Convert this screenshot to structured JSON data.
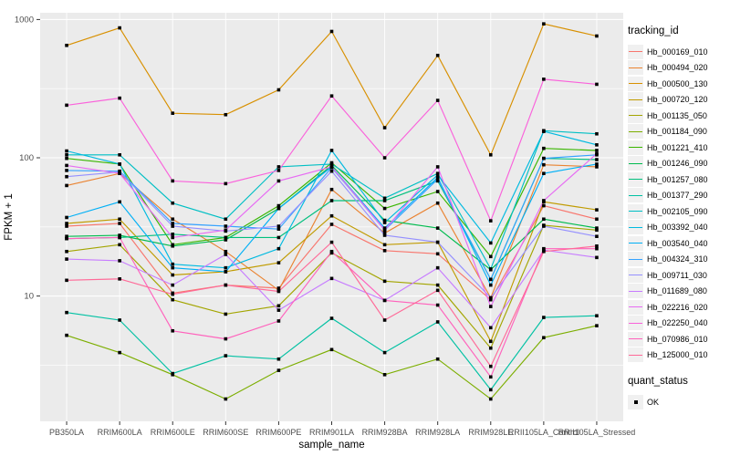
{
  "figure": {
    "kind": "ggplot-line-chart"
  },
  "legend": {
    "tracking_title": "tracking_id",
    "quant_title": "quant_status",
    "quant_value": "OK",
    "key_fill": "#f0f0f0",
    "quant_point_color": "#000000"
  },
  "panel": {
    "background": "#ebebeb",
    "gridline_color": "#ffffff",
    "tick_color": "#333333",
    "tick_label_color": "#4d4d4d"
  },
  "chart_data": {
    "type": "line",
    "title": "",
    "xlabel": "sample_name",
    "ylabel": "FPKM + 1",
    "y_scale": "log10",
    "ylim": [
      1.2,
      1100
    ],
    "y_ticks": [
      {
        "value": 1000,
        "label": "1000"
      },
      {
        "value": 100,
        "label": "100"
      },
      {
        "value": 10,
        "label": "10"
      }
    ],
    "y_minor_gridlines": [
      316.23,
      31.62,
      3.162
    ],
    "grid": true,
    "legend_position": "right",
    "point_shape": "black-square",
    "categories": [
      "PB350LA",
      "RRIM600LA",
      "RRIM600LE",
      "RRIM600SE",
      "RRIM600PE",
      "RRIM901LA",
      "RRIM928BA",
      "RRIM928LA",
      "RRIM928LE",
      "RRII105LA_Control",
      "RRII105LA_Stressed"
    ],
    "series": [
      {
        "name": "Hb_000169_010",
        "color": "#F8766D",
        "values": [
          32,
          33.5,
          10.5,
          12,
          11.4,
          33,
          21.3,
          20.2,
          9.4,
          45,
          36
        ]
      },
      {
        "name": "Hb_000494_020",
        "color": "#EA8331",
        "values": [
          63,
          77,
          36,
          21,
          11,
          59,
          28.5,
          47,
          9.7,
          89,
          86
        ]
      },
      {
        "name": "Hb_000500_130",
        "color": "#D89000",
        "values": [
          650,
          870,
          210,
          205,
          310,
          820,
          165,
          550,
          105,
          930,
          760
        ]
      },
      {
        "name": "Hb_000720_120",
        "color": "#C09B00",
        "values": [
          33.5,
          36,
          14.2,
          15,
          17.4,
          38,
          23.5,
          24.5,
          4.7,
          48,
          42
        ]
      },
      {
        "name": "Hb_001135_050",
        "color": "#A3A500",
        "values": [
          21,
          23.5,
          9.4,
          7.4,
          8.5,
          20.5,
          12.8,
          12,
          4.2,
          32.5,
          30
        ]
      },
      {
        "name": "Hb_001184_090",
        "color": "#7CAE00",
        "values": [
          5.2,
          3.9,
          2.7,
          1.8,
          2.9,
          4.1,
          2.7,
          3.5,
          1.8,
          5,
          6.1
        ]
      },
      {
        "name": "Hb_001221_410",
        "color": "#39B600",
        "values": [
          99,
          90,
          23.5,
          26.5,
          45,
          92,
          43,
          57,
          19.3,
          117,
          113
        ]
      },
      {
        "name": "Hb_001246_090",
        "color": "#00BB4E",
        "values": [
          27,
          27.5,
          23,
          25.5,
          43,
          88,
          35.3,
          31,
          15.5,
          36,
          31
        ]
      },
      {
        "name": "Hb_001257_080",
        "color": "#00BF7D",
        "values": [
          26,
          26.5,
          28,
          26.5,
          26.5,
          49,
          49,
          68,
          13.2,
          99,
          97
        ]
      },
      {
        "name": "Hb_001377_290",
        "color": "#00C1A3",
        "values": [
          7.6,
          6.7,
          2.75,
          3.7,
          3.5,
          6.9,
          3.9,
          6.5,
          2.1,
          7,
          7.2
        ]
      },
      {
        "name": "Hb_002105_090",
        "color": "#00BFC4",
        "values": [
          105,
          105,
          47,
          36,
          86,
          90,
          51,
          77,
          15.7,
          157,
          149
        ]
      },
      {
        "name": "Hb_003392_040",
        "color": "#00BAE0",
        "values": [
          112,
          90,
          17,
          16,
          22,
          113,
          34,
          75,
          24.2,
          155,
          124
        ]
      },
      {
        "name": "Hb_003540_040",
        "color": "#00B0F6",
        "values": [
          37,
          48,
          16,
          15,
          43,
          86,
          31,
          72,
          12,
          77,
          90
        ]
      },
      {
        "name": "Hb_004324_310",
        "color": "#35A2FF",
        "values": [
          81,
          80,
          33.5,
          32,
          30.5,
          85,
          30,
          70,
          13.2,
          99,
          105
        ]
      },
      {
        "name": "Hb_009711_030",
        "color": "#9590FF",
        "values": [
          73,
          79,
          32,
          29.5,
          32,
          80,
          27.5,
          24.5,
          9.7,
          32,
          27
        ]
      },
      {
        "name": "Hb_011689_080",
        "color": "#C77CFF",
        "values": [
          18.5,
          18,
          12,
          20,
          7.9,
          13.4,
          9.3,
          16,
          5.9,
          21.5,
          19
        ]
      },
      {
        "name": "Hb_022216_020",
        "color": "#E76BF3",
        "values": [
          88,
          77,
          26.5,
          30,
          68,
          86,
          30,
          86,
          8.4,
          49,
          107
        ]
      },
      {
        "name": "Hb_022250_040",
        "color": "#FA62DB",
        "values": [
          240,
          270,
          68,
          65,
          81,
          280,
          100,
          260,
          35,
          370,
          340
        ]
      },
      {
        "name": "Hb_070986_010",
        "color": "#FF62BC",
        "values": [
          26,
          26.5,
          5.6,
          4.9,
          6.6,
          21,
          9.3,
          8.6,
          2.6,
          22,
          22
        ]
      },
      {
        "name": "Hb_125000_010",
        "color": "#FF6A98",
        "values": [
          13,
          13.3,
          10.3,
          12,
          10.8,
          24.5,
          6.7,
          11,
          3.1,
          21,
          23
        ]
      }
    ]
  }
}
